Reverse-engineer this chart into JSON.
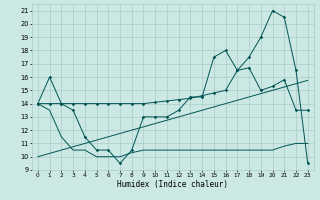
{
  "xlabel": "Humidex (Indice chaleur)",
  "xlim": [
    -0.5,
    23.5
  ],
  "ylim": [
    9,
    21.5
  ],
  "yticks": [
    9,
    10,
    11,
    12,
    13,
    14,
    15,
    16,
    17,
    18,
    19,
    20,
    21
  ],
  "xticks": [
    0,
    1,
    2,
    3,
    4,
    5,
    6,
    7,
    8,
    9,
    10,
    11,
    12,
    13,
    14,
    15,
    16,
    17,
    18,
    19,
    20,
    21,
    22,
    23
  ],
  "bg_color": "#cce8e4",
  "grid_color": "#aaccc8",
  "line_color": "#005555",
  "lw": 0.7,
  "ms": 1.8,
  "main_y": [
    14.0,
    16.0,
    14.0,
    13.5,
    11.5,
    10.5,
    10.5,
    9.5,
    10.5,
    13.0,
    13.0,
    13.0,
    13.5,
    14.5,
    14.5,
    17.5,
    18.0,
    16.5,
    17.5,
    19.0,
    21.0,
    20.5,
    16.5,
    9.5
  ],
  "upper_y": [
    14.0,
    14.0,
    14.0,
    14.0,
    14.0,
    14.0,
    14.0,
    14.0,
    14.0,
    14.0,
    14.1,
    14.2,
    14.3,
    14.4,
    14.6,
    14.8,
    15.0,
    16.5,
    16.7,
    15.0,
    15.3,
    15.8,
    13.5,
    13.5
  ],
  "lower_y": [
    14.0,
    13.5,
    11.5,
    10.5,
    10.5,
    10.0,
    10.0,
    10.0,
    10.3,
    10.5,
    10.5,
    10.5,
    10.5,
    10.5,
    10.5,
    10.5,
    10.5,
    10.5,
    10.5,
    10.5,
    10.5,
    10.8,
    11.0,
    11.0
  ],
  "trend_y": [
    10.0,
    10.25,
    10.5,
    10.75,
    11.0,
    11.25,
    11.5,
    11.75,
    12.0,
    12.25,
    12.5,
    12.75,
    13.0,
    13.25,
    13.5,
    13.75,
    14.0,
    14.25,
    14.5,
    14.75,
    15.0,
    15.25,
    15.5,
    15.75
  ]
}
